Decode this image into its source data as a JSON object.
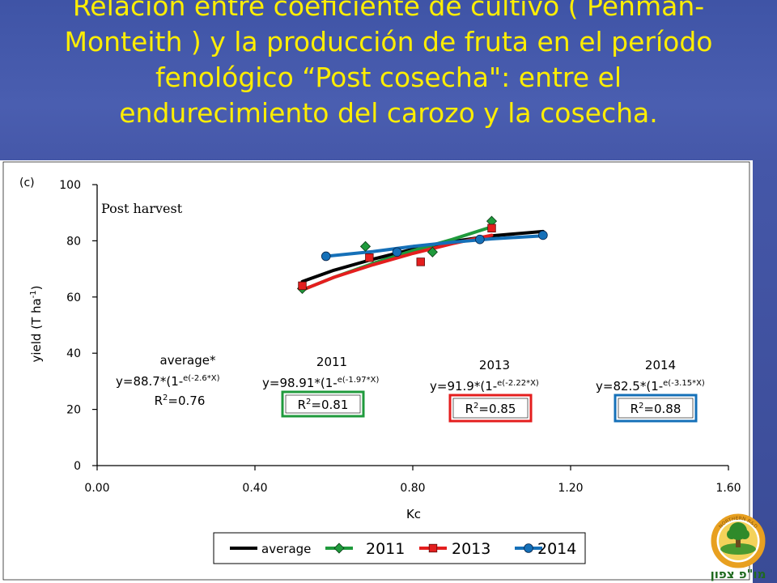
{
  "slide": {
    "title_lines": [
      "Relación entre coeficiente de cultivo ( Penman-",
      "Monteith ) y la producción de fruta en el período",
      "fenológico “Post cosecha\": entre el",
      "endurecimiento del carozo y la cosecha."
    ]
  },
  "chart_data": {
    "type": "scatter",
    "panel_label": "(c)",
    "annotation": "Post harvest",
    "xlabel": "Kc",
    "ylabel_main": "yield (T ha",
    "ylabel_sup": "-1",
    "ylabel_close": ")",
    "xlim": [
      0,
      1.6
    ],
    "ylim": [
      0,
      100
    ],
    "x_ticks": [
      "0.00",
      "0.40",
      "0.80",
      "1.20",
      "1.60"
    ],
    "y_ticks": [
      "0",
      "20",
      "40",
      "60",
      "80",
      "100"
    ],
    "grid": false,
    "legend_position": "bottom",
    "series": [
      {
        "name": "average",
        "color": "#000000",
        "marker": "none",
        "points": [],
        "fit": [
          [
            0.52,
            65.5
          ],
          [
            0.6,
            69.5
          ],
          [
            0.7,
            73.5
          ],
          [
            0.8,
            77
          ],
          [
            0.9,
            79.7
          ],
          [
            1.0,
            81.8
          ],
          [
            1.13,
            83.3
          ]
        ]
      },
      {
        "name": "2011",
        "color": "#1f9a3c",
        "marker": "diamond",
        "points": [
          [
            0.52,
            63
          ],
          [
            0.68,
            78
          ],
          [
            0.85,
            76
          ],
          [
            1.0,
            87
          ]
        ],
        "fit": [
          [
            0.52,
            62.5
          ],
          [
            0.6,
            67
          ],
          [
            0.7,
            72
          ],
          [
            0.8,
            76.5
          ],
          [
            0.9,
            80.5
          ],
          [
            1.0,
            85
          ]
        ]
      },
      {
        "name": "2013",
        "color": "#e41e1e",
        "marker": "square",
        "points": [
          [
            0.52,
            64
          ],
          [
            0.69,
            74
          ],
          [
            0.82,
            72.5
          ],
          [
            1.0,
            84.5
          ]
        ],
        "fit": [
          [
            0.52,
            62.5
          ],
          [
            0.6,
            67
          ],
          [
            0.7,
            71.5
          ],
          [
            0.8,
            75.5
          ],
          [
            0.9,
            79
          ],
          [
            1.0,
            82
          ]
        ]
      },
      {
        "name": "2014",
        "color": "#1570b8",
        "marker": "circle",
        "points": [
          [
            0.58,
            74.5
          ],
          [
            0.76,
            76
          ],
          [
            0.97,
            80.5
          ],
          [
            1.13,
            82
          ]
        ],
        "fit": [
          [
            0.58,
            74.5
          ],
          [
            0.7,
            76.2
          ],
          [
            0.8,
            78
          ],
          [
            0.9,
            79.5
          ],
          [
            1.0,
            80.7
          ],
          [
            1.13,
            81.8
          ]
        ]
      }
    ],
    "equations": [
      {
        "heading": "average*",
        "eq": "y=88.7*(1-",
        "exp": "e(-2.6*X)",
        "r2": "=0.76",
        "boxed": false,
        "box_color": ""
      },
      {
        "heading": "2011",
        "eq": "y=98.91*(1-",
        "exp": "e(-1.97*X)",
        "r2": "=0.81",
        "boxed": true,
        "box_color": "#1f9a3c"
      },
      {
        "heading": "2013",
        "eq": "y=91.9*(1-",
        "exp": "e(-2.22*X)",
        "r2": "=0.85",
        "boxed": true,
        "box_color": "#e41e1e"
      },
      {
        "heading": "2014",
        "eq": "y=82.5*(1-",
        "exp": "e(-3.15*X)",
        "r2": "=0.88",
        "boxed": true,
        "box_color": "#1570b8"
      }
    ]
  },
  "logo": {
    "text_hebrew": "מו\"פ צפון",
    "text_ring": "NORTHERN R&D"
  }
}
